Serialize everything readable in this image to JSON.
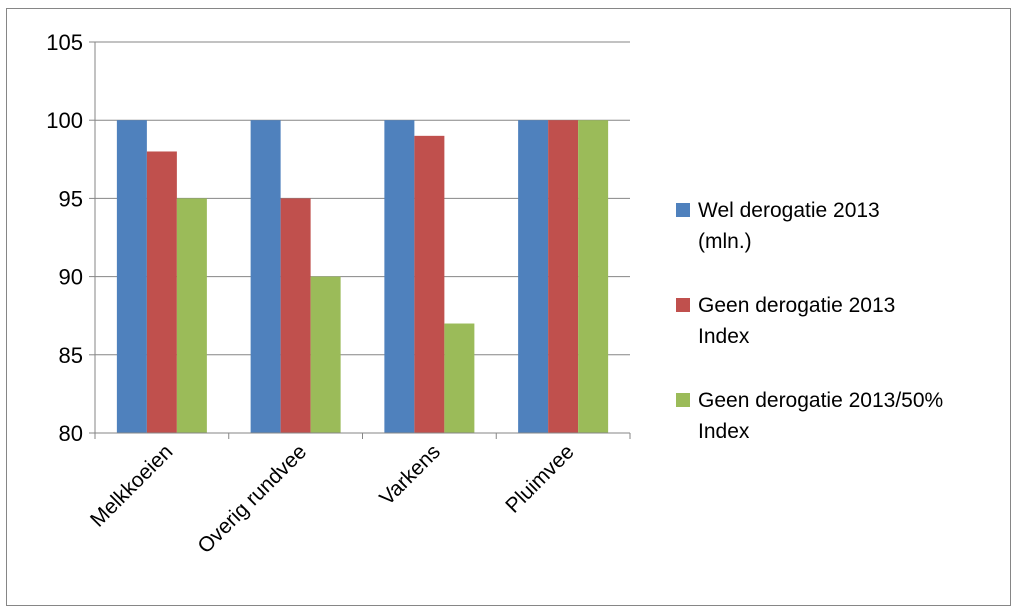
{
  "chart_data": {
    "type": "bar",
    "categories": [
      "Melkkoeien",
      "Overig rundvee",
      "Varkens",
      "Pluimvee"
    ],
    "series": [
      {
        "name": "Wel derogatie 2013 (mln.)",
        "values": [
          100,
          100,
          100,
          100
        ],
        "color": "#4F81BD"
      },
      {
        "name": "Geen derogatie 2013 Index",
        "values": [
          98,
          95,
          99,
          100
        ],
        "color": "#C0504D"
      },
      {
        "name": "Geen derogatie 2013/50% Index",
        "values": [
          95,
          90,
          87,
          100
        ],
        "color": "#9BBB59"
      }
    ],
    "legend": [
      {
        "lines": [
          "Wel derogatie 2013",
          "(mln.)"
        ]
      },
      {
        "lines": [
          "Geen derogatie 2013",
          "Index"
        ]
      },
      {
        "lines": [
          "Geen derogatie 2013/50%",
          "Index"
        ]
      }
    ],
    "yticks": [
      "80",
      "85",
      "90",
      "95",
      "100",
      "105"
    ],
    "ylim": [
      80,
      105
    ],
    "grid": true,
    "legend_position": "right",
    "title": "",
    "xlabel": "",
    "ylabel": ""
  }
}
